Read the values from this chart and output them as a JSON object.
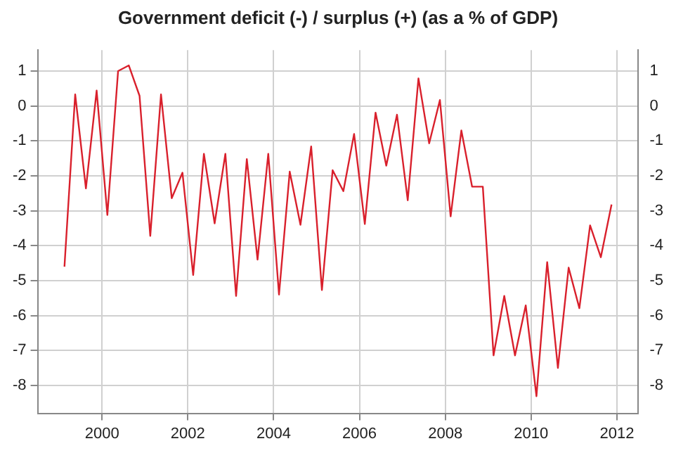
{
  "chart_data": {
    "type": "line",
    "title": "Government deficit (-) / surplus (+) (as a % of GDP)",
    "x": [
      1999.125,
      1999.375,
      1999.625,
      1999.875,
      2000.125,
      2000.375,
      2000.625,
      2000.875,
      2001.125,
      2001.375,
      2001.625,
      2001.875,
      2002.125,
      2002.375,
      2002.625,
      2002.875,
      2003.125,
      2003.375,
      2003.625,
      2003.875,
      2004.125,
      2004.375,
      2004.625,
      2004.875,
      2005.125,
      2005.375,
      2005.625,
      2005.875,
      2006.125,
      2006.375,
      2006.625,
      2006.875,
      2007.125,
      2007.375,
      2007.625,
      2007.875,
      2008.125,
      2008.375,
      2008.625,
      2008.875,
      2009.125,
      2009.375,
      2009.625,
      2009.875,
      2010.125,
      2010.375,
      2010.625,
      2010.875,
      2011.125,
      2011.375,
      2011.625,
      2011.875
    ],
    "series": [
      {
        "color": "#d9202c",
        "values": [
          -4.6,
          0.33,
          -2.36,
          0.44,
          -3.12,
          1.0,
          1.16,
          0.29,
          -3.72,
          0.33,
          -2.64,
          -1.91,
          -4.84,
          -1.37,
          -3.36,
          -1.37,
          -5.44,
          -1.52,
          -4.4,
          -1.37,
          -5.4,
          -1.88,
          -3.4,
          -1.16,
          -5.27,
          -1.84,
          -2.44,
          -0.8,
          -3.38,
          -0.19,
          -1.71,
          -0.25,
          -2.7,
          0.79,
          -1.07,
          0.17,
          -3.16,
          -0.7,
          -2.31,
          -2.31,
          -7.14,
          -5.44,
          -7.14,
          -5.71,
          -8.31,
          -4.47,
          -7.5,
          -4.63,
          -5.79,
          -3.42,
          -4.33,
          -2.82
        ]
      }
    ],
    "xlim": [
      1998.5,
      2012.5
    ],
    "xticks": [
      2000,
      2002,
      2004,
      2006,
      2008,
      2010,
      2012
    ],
    "ylim": [
      -8.8,
      1.6
    ],
    "yticks": [
      -8,
      -7,
      -6,
      -5,
      -4,
      -3,
      -2,
      -1,
      0,
      1
    ],
    "y2lim": [
      -8.8,
      1.6
    ],
    "y2ticks": [
      -8,
      -7,
      -6,
      -5,
      -4,
      -3,
      -2,
      -1,
      0,
      1
    ],
    "grid": true,
    "legend": false,
    "marker": "none",
    "line_style": "solid"
  }
}
